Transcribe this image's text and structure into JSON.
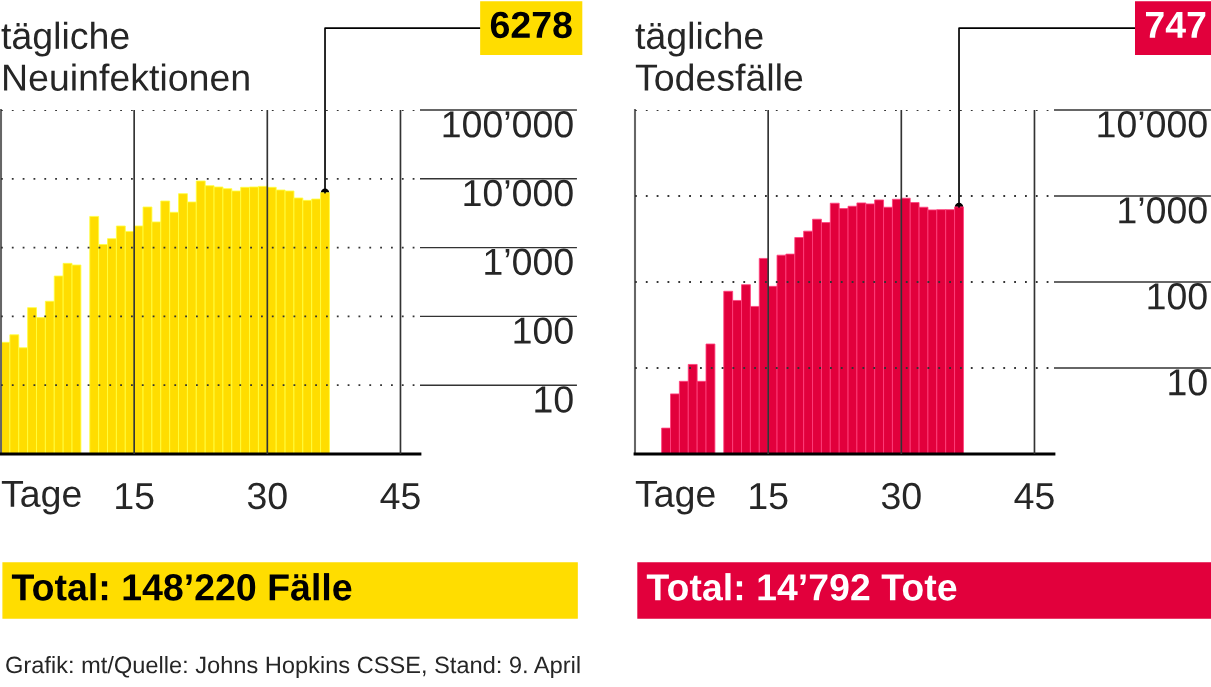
{
  "chart_data": [
    {
      "type": "bar",
      "title": "tägliche\nNeuinfektionen",
      "xlabel": "Tage",
      "x": [
        0.5,
        1.5,
        2.5,
        3.5,
        4.5,
        5.5,
        6.5,
        7.5,
        8.5,
        9.5,
        10.5,
        11.5,
        12.5,
        13.5,
        14.5,
        15.5,
        16.5,
        17.5,
        18.5,
        19.5,
        20.5,
        21.5,
        22.5,
        23.5,
        24.5,
        25.5,
        26.5,
        27.5,
        28.5,
        29.5,
        30.5,
        31.5,
        32.5,
        33.5,
        34.5,
        35.5,
        36.5
      ],
      "series": [
        {
          "color": "#ffdd00",
          "values": [
            42,
            54,
            35,
            134,
            96,
            166,
            386,
            590,
            558,
            null,
            2840,
            1110,
            1350,
            2060,
            1720,
            2060,
            3890,
            2360,
            4750,
            3260,
            6080,
            4600,
            9290,
            7940,
            7600,
            7190,
            6650,
            7520,
            7600,
            7760,
            7520,
            6870,
            6650,
            5260,
            4860,
            5080,
            6278
          ]
        }
      ],
      "log": "y",
      "ylim": [
        1,
        100000
      ],
      "yticks": [
        {
          "value": 10,
          "label": "10"
        },
        {
          "value": 100,
          "label": "100"
        },
        {
          "value": 1000,
          "label": "1’000"
        },
        {
          "value": 10000,
          "label": "10’000"
        },
        {
          "value": 100000,
          "label": "100’000"
        }
      ],
      "xlim": [
        0,
        47.2
      ],
      "xticks": [
        15,
        30,
        45
      ],
      "grid": true,
      "annotations": [
        {
          "text": "6278",
          "x": 36.5,
          "y": 6278
        },
        "Total: 148’220 Fälle"
      ]
    },
    {
      "type": "bar",
      "title": "tägliche\nTodesfälle",
      "xlabel": "Tage",
      "x": [
        3.5,
        4.5,
        5.5,
        6.5,
        7.5,
        8.5,
        9.5,
        10.5,
        11.5,
        12.5,
        13.5,
        14.5,
        15.5,
        16.5,
        17.5,
        18.5,
        19.5,
        20.5,
        21.5,
        22.5,
        23.5,
        24.5,
        25.5,
        26.5,
        27.5,
        28.5,
        29.5,
        30.5,
        31.5,
        32.5,
        33.5,
        34.5,
        35.5,
        36.5
      ],
      "series": [
        {
          "color": "#e2003c",
          "values": [
            2,
            5,
            7,
            11,
            7,
            19,
            null,
            78,
            61,
            93,
            52,
            188,
            89,
            205,
            211,
            329,
            390,
            537,
            491,
            824,
            714,
            760,
            831,
            809,
            900,
            740,
            916,
            942,
            839,
            740,
            689,
            694,
            694,
            747
          ]
        }
      ],
      "log": "y",
      "ylim": [
        1,
        10000
      ],
      "yticks": [
        {
          "value": 10,
          "label": "10"
        },
        {
          "value": 100,
          "label": "100"
        },
        {
          "value": 1000,
          "label": "1’000"
        },
        {
          "value": 10000,
          "label": "10’000"
        }
      ],
      "xlim": [
        0,
        47.2
      ],
      "xticks": [
        15,
        30,
        45
      ],
      "grid": true,
      "annotations": [
        {
          "text": "747",
          "x": 36.5,
          "y": 747
        },
        "Total: 14’792 Tote",
        "Grafik: mt/Quelle: Johns Hopkins CSSE, Stand: 9. April"
      ]
    }
  ]
}
